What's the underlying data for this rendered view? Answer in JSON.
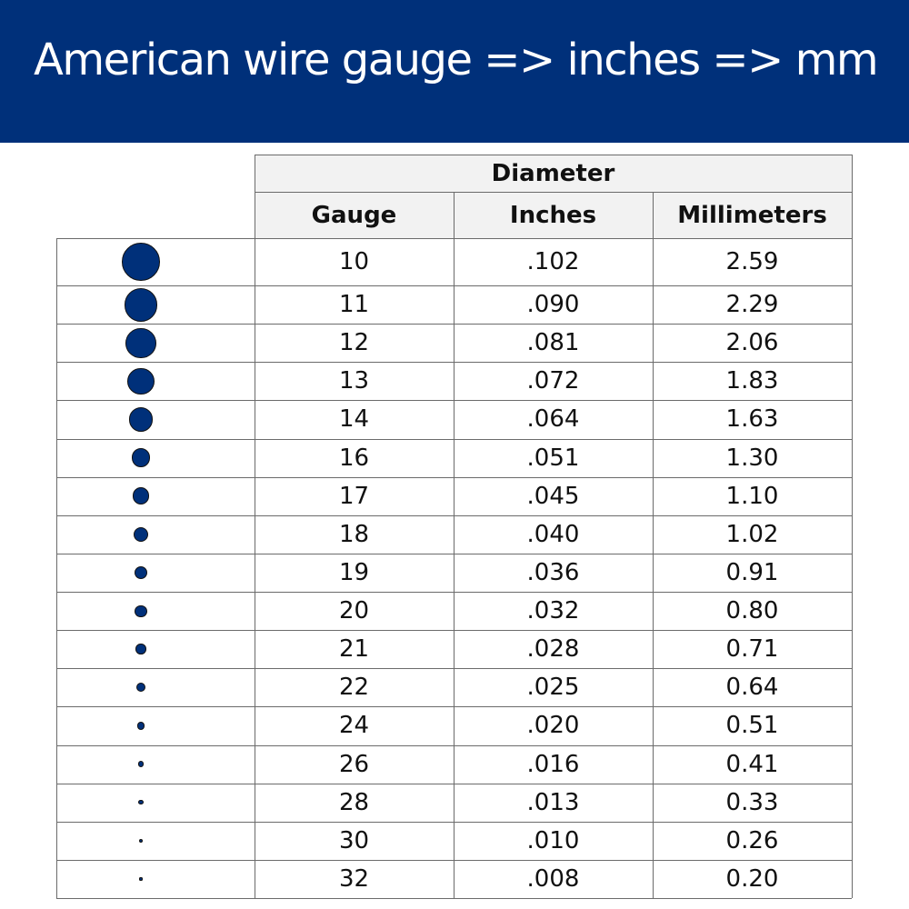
{
  "header": {
    "title": "American wire gauge => inches => mm",
    "background": "#00307a"
  },
  "table": {
    "group_header": "Diameter",
    "columns": [
      "Gauge",
      "Inches",
      "Millimeters"
    ],
    "wire_icon_color": "#00307a",
    "rows": [
      {
        "gauge": "10",
        "inches": ".102",
        "mm": "2.59"
      },
      {
        "gauge": "11",
        "inches": ".090",
        "mm": "2.29"
      },
      {
        "gauge": "12",
        "inches": ".081",
        "mm": "2.06"
      },
      {
        "gauge": "13",
        "inches": ".072",
        "mm": "1.83"
      },
      {
        "gauge": "14",
        "inches": ".064",
        "mm": "1.63"
      },
      {
        "gauge": "16",
        "inches": ".051",
        "mm": "1.30"
      },
      {
        "gauge": "17",
        "inches": ".045",
        "mm": "1.10"
      },
      {
        "gauge": "18",
        "inches": ".040",
        "mm": "1.02"
      },
      {
        "gauge": "19",
        "inches": ".036",
        "mm": "0.91"
      },
      {
        "gauge": "20",
        "inches": ".032",
        "mm": "0.80"
      },
      {
        "gauge": "21",
        "inches": ".028",
        "mm": "0.71"
      },
      {
        "gauge": "22",
        "inches": ".025",
        "mm": "0.64"
      },
      {
        "gauge": "24",
        "inches": ".020",
        "mm": "0.51"
      },
      {
        "gauge": "26",
        "inches": ".016",
        "mm": "0.41"
      },
      {
        "gauge": "28",
        "inches": ".013",
        "mm": "0.33"
      },
      {
        "gauge": "30",
        "inches": ".010",
        "mm": "0.26"
      },
      {
        "gauge": "32",
        "inches": ".008",
        "mm": "0.20"
      }
    ]
  }
}
